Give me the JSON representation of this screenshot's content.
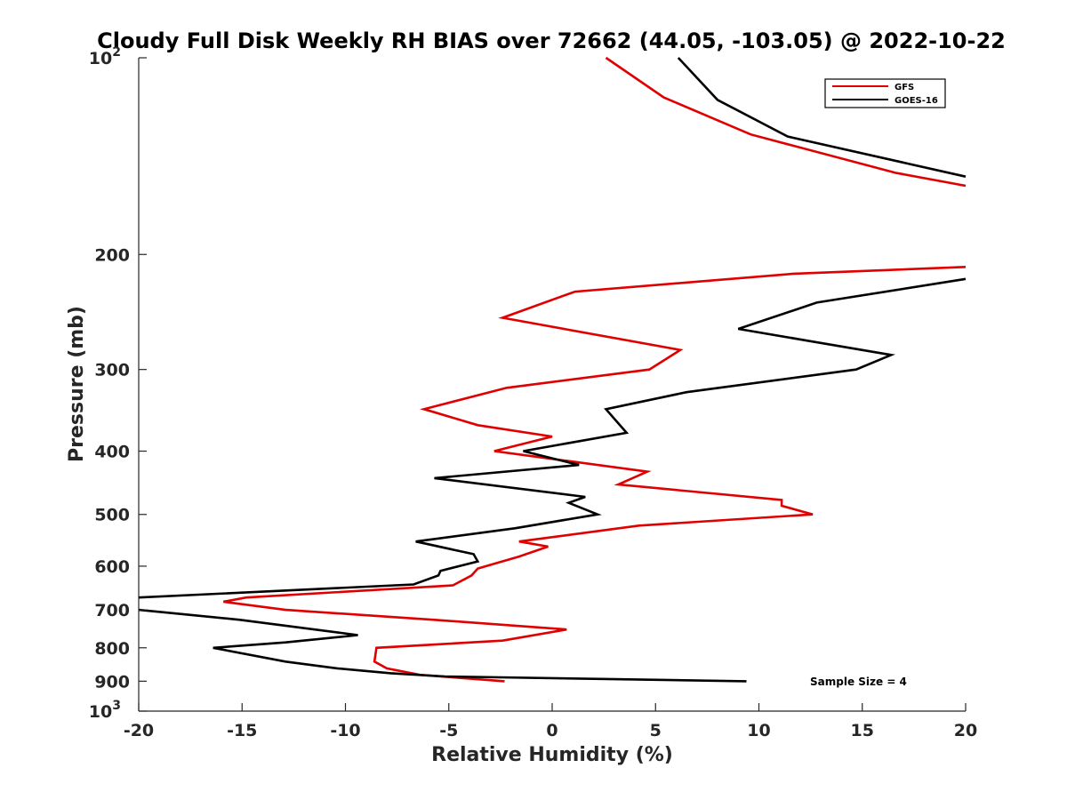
{
  "chart_data": {
    "type": "line",
    "title": "Cloudy Full Disk Weekly RH BIAS over 72662 (44.05, -103.05) @ 2022-10-22",
    "xlabel": "Relative Humidity (%)",
    "ylabel": "Pressure (mb)",
    "xlim": [
      -20,
      20
    ],
    "ylim": [
      100,
      1000
    ],
    "y_scale": "log",
    "y_reversed": true,
    "grid": false,
    "legend_position": "top-right",
    "x_ticks": [
      -20,
      -15,
      -10,
      -5,
      0,
      5,
      10,
      15,
      20
    ],
    "y_ticks": [
      {
        "value": 100,
        "label": "10",
        "sup": "2"
      },
      {
        "value": 200,
        "label": "200",
        "sup": ""
      },
      {
        "value": 300,
        "label": "300",
        "sup": ""
      },
      {
        "value": 400,
        "label": "400",
        "sup": ""
      },
      {
        "value": 500,
        "label": "500",
        "sup": ""
      },
      {
        "value": 600,
        "label": "600",
        "sup": ""
      },
      {
        "value": 700,
        "label": "700",
        "sup": ""
      },
      {
        "value": 800,
        "label": "800",
        "sup": ""
      },
      {
        "value": 900,
        "label": "900",
        "sup": ""
      },
      {
        "value": 1000,
        "label": "10",
        "sup": "3"
      }
    ],
    "series": [
      {
        "name": "GFS",
        "color": "#e00000",
        "points": [
          [
            2.6,
            100
          ],
          [
            5.4,
            115
          ],
          [
            9.6,
            131
          ],
          [
            16.6,
            150
          ],
          [
            20.0,
            157
          ],
          [
            null,
            null
          ],
          [
            20.0,
            209
          ],
          [
            11.7,
            214
          ],
          [
            1.1,
            228
          ],
          [
            -2.4,
            250
          ],
          [
            6.2,
            280
          ],
          [
            4.7,
            300
          ],
          [
            -2.2,
            320
          ],
          [
            -6.2,
            345
          ],
          [
            -3.6,
            365
          ],
          [
            0.0,
            380
          ],
          [
            -2.8,
            400
          ],
          [
            4.6,
            430
          ],
          [
            3.2,
            450
          ],
          [
            11.1,
            475
          ],
          [
            11.1,
            485
          ],
          [
            12.6,
            500
          ],
          [
            4.2,
            520
          ],
          [
            -1.6,
            550
          ],
          [
            -0.2,
            560
          ],
          [
            -1.6,
            580
          ],
          [
            -3.6,
            605
          ],
          [
            -3.9,
            620
          ],
          [
            -4.8,
            642
          ],
          [
            -14.8,
            670
          ],
          [
            -15.9,
            680
          ],
          [
            -12.9,
            700
          ],
          [
            -5.7,
            725
          ],
          [
            0.7,
            750
          ],
          [
            -2.4,
            780
          ],
          [
            -8.5,
            800
          ],
          [
            -8.6,
            840
          ],
          [
            -8.0,
            860
          ],
          [
            -6.4,
            880
          ],
          [
            -2.3,
            900
          ]
        ]
      },
      {
        "name": "GOES-16",
        "color": "#000000",
        "points": [
          [
            6.1,
            100
          ],
          [
            8.0,
            116
          ],
          [
            11.4,
            132
          ],
          [
            20.0,
            152
          ],
          [
            null,
            null
          ],
          [
            20.0,
            218
          ],
          [
            12.8,
            237
          ],
          [
            9.0,
            260
          ],
          [
            16.4,
            285
          ],
          [
            14.7,
            300
          ],
          [
            6.5,
            325
          ],
          [
            2.6,
            345
          ],
          [
            3.6,
            375
          ],
          [
            -1.4,
            400
          ],
          [
            1.3,
            420
          ],
          [
            -5.7,
            440
          ],
          [
            1.6,
            470
          ],
          [
            0.8,
            480
          ],
          [
            2.2,
            500
          ],
          [
            -1.8,
            525
          ],
          [
            -6.6,
            550
          ],
          [
            -3.8,
            575
          ],
          [
            -3.6,
            590
          ],
          [
            -5.4,
            610
          ],
          [
            -5.5,
            620
          ],
          [
            -6.7,
            640
          ],
          [
            -20.0,
            670
          ],
          [
            null,
            null
          ],
          [
            -20.0,
            700
          ],
          [
            -15.1,
            725
          ],
          [
            -12.9,
            740
          ],
          [
            -9.4,
            765
          ],
          [
            -12.9,
            785
          ],
          [
            -16.4,
            800
          ],
          [
            -12.9,
            840
          ],
          [
            -10.4,
            860
          ],
          [
            -7.8,
            875
          ],
          [
            -5.2,
            885
          ],
          [
            9.4,
            900
          ]
        ]
      }
    ],
    "annotations": [
      {
        "text": "Sample Size = 4"
      }
    ]
  }
}
